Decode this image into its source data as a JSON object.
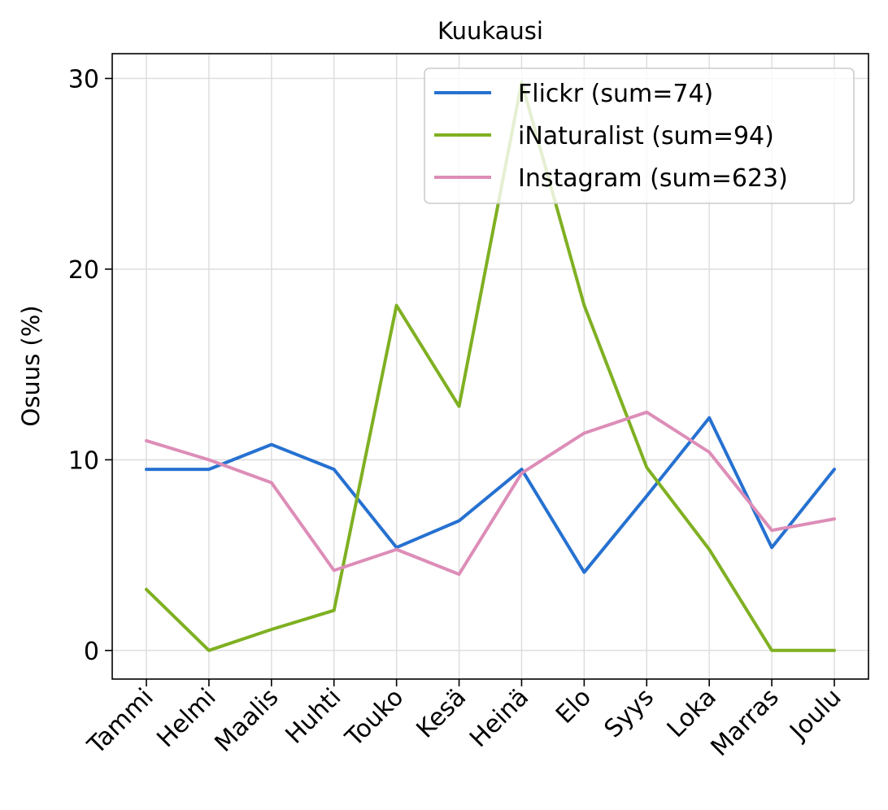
{
  "chart_data": {
    "type": "line",
    "title": "Kuukausi",
    "xlabel": "",
    "ylabel": "Osuus (%)",
    "categories": [
      "Tammi",
      "Helmi",
      "Maalis",
      "Huhti",
      "Touko",
      "Kesä",
      "Heinä",
      "Elo",
      "Syys",
      "Loka",
      "Marras",
      "Joulu"
    ],
    "ylim": [
      -1.5,
      31.3
    ],
    "yticks": [
      "0",
      "10",
      "20",
      "30"
    ],
    "grid": true,
    "legend_position": "top-right",
    "series": [
      {
        "name": "Flickr (sum=74)",
        "color": "#2671d1",
        "values": [
          9.5,
          9.5,
          10.8,
          9.5,
          5.4,
          6.8,
          9.5,
          4.1,
          8.1,
          12.2,
          5.4,
          9.5
        ]
      },
      {
        "name": "iNaturalist (sum=94)",
        "color": "#7fb022",
        "values": [
          3.2,
          0.0,
          1.1,
          2.1,
          18.1,
          12.8,
          29.8,
          18.1,
          9.6,
          5.3,
          0.0,
          0.0
        ]
      },
      {
        "name": "Instagram (sum=623)",
        "color": "#dd8db8",
        "values": [
          11.0,
          10.0,
          8.8,
          4.2,
          5.3,
          4.0,
          9.3,
          11.4,
          12.5,
          10.4,
          6.3,
          6.9
        ]
      }
    ]
  }
}
